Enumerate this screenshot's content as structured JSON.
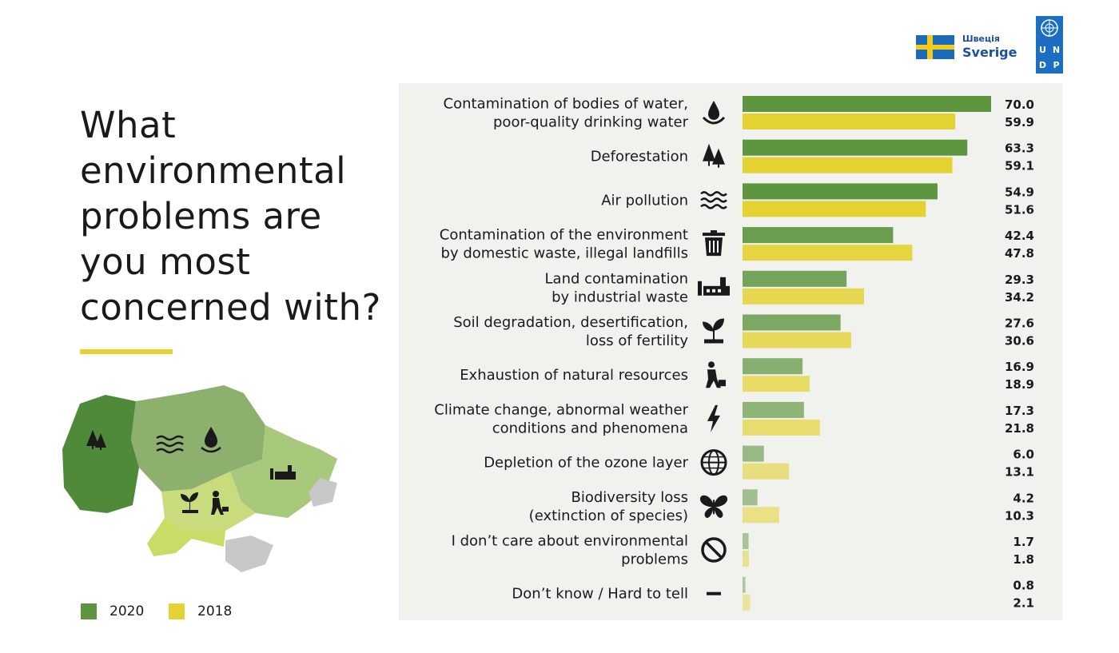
{
  "title": "What environmental problems are you most concerned with?",
  "legend": [
    {
      "label": "2020",
      "color": "#5e9640"
    },
    {
      "label": "2018",
      "color": "#e3d232"
    }
  ],
  "logos": {
    "sweden_small": "Швеція",
    "sweden_big": "Sverige",
    "undp_letters": [
      "U",
      "N",
      "D",
      "P"
    ]
  },
  "map_icons": [
    "trees-icon",
    "air-waves-icon",
    "water-drop-icon",
    "factory-icon",
    "sprout-icon",
    "miner-icon"
  ],
  "chart_data": {
    "type": "bar",
    "orientation": "horizontal",
    "title": "What environmental problems are you most concerned with?",
    "xlim": [
      0,
      70
    ],
    "grid": false,
    "legend_position": "bottom-left",
    "series": [
      {
        "name": "2020",
        "color": "#5e9640",
        "values": [
          70.0,
          63.3,
          54.9,
          42.4,
          29.3,
          27.6,
          16.9,
          17.3,
          6.0,
          4.2,
          1.7,
          0.8
        ]
      },
      {
        "name": "2018",
        "color": "#e3d232",
        "values": [
          59.9,
          59.1,
          51.6,
          47.8,
          34.2,
          30.6,
          18.9,
          21.8,
          13.1,
          10.3,
          1.8,
          2.1
        ]
      }
    ],
    "value_labels_2020": [
      "70.0",
      "63.3",
      "54.9",
      "42.4",
      "29.3",
      "27.6",
      "16.9",
      "17.3",
      "6.0",
      "4.2",
      "1.7",
      "0.8"
    ],
    "value_labels_2018": [
      "59.9",
      "59.1",
      "51.6",
      "47.8",
      "34.2",
      "30.6",
      "18.9",
      "21.8",
      "13.1",
      "10.3",
      "1.8",
      "2.1"
    ],
    "categories": [
      {
        "lines": [
          "Contamination of bodies of water,",
          "poor-quality drinking water"
        ],
        "icon": "water-drop-icon"
      },
      {
        "lines": [
          "Deforestation"
        ],
        "icon": "trees-icon"
      },
      {
        "lines": [
          "Air pollution"
        ],
        "icon": "air-waves-icon"
      },
      {
        "lines": [
          "Contamination of the environment",
          "by domestic waste, illegal landfills"
        ],
        "icon": "trash-bin-icon"
      },
      {
        "lines": [
          "Land contamination",
          "by industrial waste"
        ],
        "icon": "factory-icon"
      },
      {
        "lines": [
          "Soil degradation, desertification,",
          "loss of fertility"
        ],
        "icon": "sprout-icon"
      },
      {
        "lines": [
          "Exhaustion of natural resources"
        ],
        "icon": "miner-icon"
      },
      {
        "lines": [
          "Climate change, abnormal weather",
          "conditions and phenomena"
        ],
        "icon": "lightning-icon"
      },
      {
        "lines": [
          "Depletion of the ozone layer"
        ],
        "icon": "globe-icon"
      },
      {
        "lines": [
          "Biodiversity loss",
          "(extinction of species)"
        ],
        "icon": "butterfly-icon"
      },
      {
        "lines": [
          "I don’t care about environmental",
          "problems"
        ],
        "icon": "no-sign-icon"
      },
      {
        "lines": [
          "Don’t know / Hard to tell"
        ],
        "icon": "dash-icon"
      }
    ]
  }
}
